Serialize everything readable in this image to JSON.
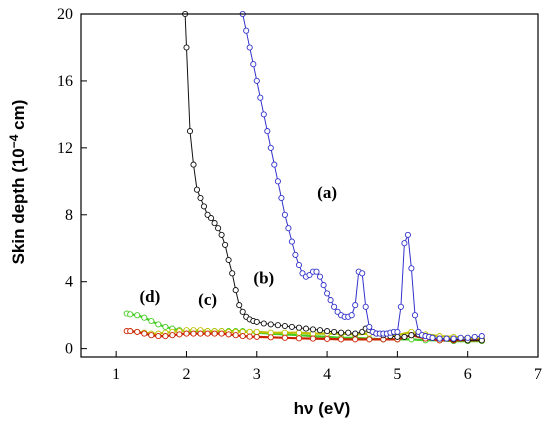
{
  "chart_data": {
    "type": "line",
    "xlabel": "hν (eV)",
    "ylabel": "Skin depth (10",
    "ylabel_exp": "−4",
    "ylabel_unit": " cm)",
    "xlim": [
      0.5,
      7
    ],
    "ylim": [
      -0.5,
      20
    ],
    "xticks": [
      1,
      2,
      3,
      4,
      5,
      6,
      7
    ],
    "yticks": [
      0,
      4,
      8,
      12,
      16,
      20
    ],
    "grid": false,
    "series": [
      {
        "name": "(a)",
        "color": "#3333cc",
        "marker": "open-circle",
        "x": [
          2.8,
          2.85,
          2.9,
          2.95,
          3.0,
          3.05,
          3.1,
          3.15,
          3.2,
          3.25,
          3.3,
          3.35,
          3.4,
          3.45,
          3.5,
          3.55,
          3.6,
          3.65,
          3.7,
          3.75,
          3.8,
          3.85,
          3.9,
          3.95,
          4.0,
          4.05,
          4.1,
          4.15,
          4.2,
          4.25,
          4.3,
          4.35,
          4.4,
          4.45,
          4.5,
          4.55,
          4.6,
          4.65,
          4.7,
          4.75,
          4.8,
          4.85,
          4.9,
          4.95,
          5.0,
          5.05,
          5.1,
          5.15,
          5.2,
          5.25,
          5.3,
          5.35,
          5.4,
          5.45,
          5.5,
          5.6,
          5.7,
          5.8,
          5.9,
          6.0,
          6.1,
          6.2
        ],
        "y": [
          20,
          19.0,
          18.0,
          17.0,
          16.0,
          15.0,
          14.0,
          13.0,
          12.0,
          11.0,
          10.0,
          9.0,
          8.0,
          7.2,
          6.4,
          5.6,
          5.0,
          4.5,
          4.3,
          4.4,
          4.6,
          4.6,
          4.3,
          3.8,
          3.3,
          2.9,
          2.5,
          2.2,
          2.0,
          1.9,
          1.9,
          2.0,
          2.6,
          4.6,
          4.5,
          2.5,
          1.3,
          1.0,
          0.9,
          0.9,
          0.9,
          0.9,
          0.95,
          1.0,
          1.0,
          2.5,
          6.3,
          6.8,
          4.8,
          2.0,
          1.0,
          0.8,
          0.75,
          0.7,
          0.65,
          0.6,
          0.6,
          0.6,
          0.65,
          0.65,
          0.7,
          0.75
        ]
      },
      {
        "name": "(b)",
        "color": "#111111",
        "marker": "open-circle",
        "x": [
          1.98,
          2.0,
          2.05,
          2.1,
          2.15,
          2.2,
          2.25,
          2.3,
          2.35,
          2.4,
          2.45,
          2.5,
          2.55,
          2.6,
          2.65,
          2.7,
          2.75,
          2.8,
          2.85,
          2.9,
          2.95,
          3.0,
          3.1,
          3.2,
          3.3,
          3.4,
          3.5,
          3.6,
          3.7,
          3.8,
          3.9,
          4.0,
          4.1,
          4.2,
          4.3,
          4.4,
          4.5,
          4.55,
          4.6,
          4.65,
          4.7,
          4.8,
          4.9,
          5.0,
          5.1,
          5.2,
          5.3,
          5.4,
          5.5,
          5.6,
          5.8,
          6.0,
          6.2
        ],
        "y": [
          20,
          18.0,
          13.0,
          11.0,
          9.5,
          9.0,
          8.5,
          8.0,
          7.8,
          7.5,
          7.2,
          6.8,
          6.2,
          5.3,
          4.5,
          3.5,
          2.6,
          2.2,
          1.9,
          1.75,
          1.65,
          1.6,
          1.5,
          1.45,
          1.4,
          1.35,
          1.3,
          1.25,
          1.2,
          1.15,
          1.1,
          1.05,
          1.0,
          0.95,
          0.95,
          0.9,
          1.0,
          1.2,
          1.1,
          1.0,
          0.9,
          0.8,
          0.75,
          0.7,
          0.7,
          0.8,
          0.85,
          0.75,
          0.65,
          0.6,
          0.55,
          0.5,
          0.5
        ]
      },
      {
        "name": "(c)",
        "color": "#c0c000",
        "marker": "open-circle",
        "x": [
          1.2,
          1.3,
          1.4,
          1.5,
          1.6,
          1.7,
          1.8,
          1.9,
          2.0,
          2.1,
          2.2,
          2.3,
          2.4,
          2.5,
          2.6,
          2.7,
          2.8,
          2.9,
          3.0,
          3.2,
          3.4,
          3.6,
          3.8,
          4.0,
          4.2,
          4.4,
          4.6,
          4.8,
          5.0,
          5.2,
          5.4,
          5.6,
          5.8,
          6.0,
          6.2
        ],
        "y": [
          1.05,
          1.0,
          0.95,
          0.9,
          0.9,
          0.95,
          1.0,
          1.05,
          1.1,
          1.1,
          1.1,
          1.05,
          1.05,
          1.05,
          1.0,
          1.0,
          1.0,
          1.0,
          1.0,
          0.95,
          0.95,
          0.95,
          0.9,
          0.9,
          0.9,
          0.85,
          0.9,
          0.85,
          0.8,
          1.0,
          0.85,
          0.75,
          0.7,
          0.65,
          0.6
        ]
      },
      {
        "name": "(d)",
        "color": "#44cc22",
        "marker": "open-circle",
        "x": [
          1.15,
          1.2,
          1.3,
          1.4,
          1.5,
          1.6,
          1.7,
          1.8,
          1.9,
          2.0,
          2.1,
          2.2,
          2.3,
          2.4,
          2.5,
          2.6,
          2.7,
          2.8,
          2.9,
          3.0,
          3.2,
          3.4,
          3.6,
          3.8,
          4.0,
          4.2,
          4.4,
          4.6,
          4.8,
          5.0,
          5.2,
          5.4,
          5.6,
          5.8,
          6.0,
          6.2
        ],
        "y": [
          2.1,
          2.05,
          2.0,
          1.85,
          1.65,
          1.45,
          1.3,
          1.2,
          1.1,
          1.05,
          1.05,
          1.05,
          1.05,
          1.05,
          1.05,
          1.05,
          1.05,
          1.05,
          1.0,
          0.95,
          0.9,
          0.85,
          0.8,
          0.75,
          0.7,
          0.65,
          0.65,
          0.6,
          0.55,
          0.55,
          0.55,
          0.5,
          0.5,
          0.45,
          0.45,
          0.45
        ]
      },
      {
        "name": "",
        "color": "#cc2200",
        "marker": "open-circle",
        "x": [
          1.15,
          1.2,
          1.3,
          1.4,
          1.5,
          1.6,
          1.7,
          1.8,
          1.9,
          2.0,
          2.1,
          2.2,
          2.3,
          2.4,
          2.5,
          2.6,
          2.7,
          2.8,
          2.9,
          3.0,
          3.2,
          3.4,
          3.6,
          3.8,
          4.0,
          4.2,
          4.4,
          4.6,
          4.8,
          5.0,
          5.2,
          5.4,
          5.6,
          5.8,
          6.0,
          6.2
        ],
        "y": [
          1.05,
          1.05,
          1.0,
          0.9,
          0.8,
          0.75,
          0.75,
          0.8,
          0.85,
          0.9,
          0.9,
          0.9,
          0.9,
          0.9,
          0.9,
          0.85,
          0.8,
          0.75,
          0.72,
          0.7,
          0.68,
          0.65,
          0.62,
          0.6,
          0.58,
          0.55,
          0.55,
          0.55,
          0.55,
          0.55,
          0.8,
          0.6,
          0.5,
          0.5,
          0.5,
          0.5
        ]
      }
    ],
    "annotations": [
      {
        "text": "(a)",
        "x": 4.0,
        "y": 9.0
      },
      {
        "text": "(b)",
        "x": 3.1,
        "y": 3.9
      },
      {
        "text": "(c)",
        "x": 2.3,
        "y": 2.6
      },
      {
        "text": "(d)",
        "x": 1.48,
        "y": 2.8
      }
    ]
  }
}
